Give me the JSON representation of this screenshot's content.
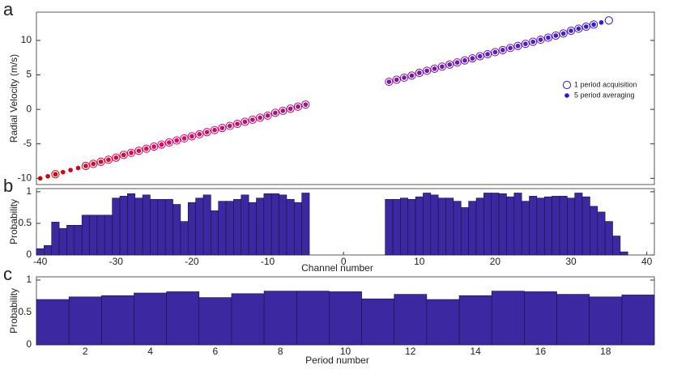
{
  "chart_data": [
    {
      "type": "scatter",
      "panel_label": "a",
      "ylabel": "Radial Velocity (m/s)",
      "xlim": [
        -40.5,
        41
      ],
      "ylim": [
        -10.9,
        14.1
      ],
      "yticks": [
        -10,
        -5,
        0,
        5,
        10
      ],
      "colormap": [
        "#cc0000",
        "#ee0060",
        "#b0107a",
        "#8010a8",
        "#5a18d0",
        "#1818e0"
      ],
      "legend": "right",
      "series": [
        {
          "name": "1 period acquisition",
          "marker": "open",
          "color": "#4a10e0",
          "x": [
            -38,
            -34,
            -33,
            -32,
            -31,
            -30,
            -29,
            -28,
            -27,
            -26,
            -25,
            -24,
            -23,
            -22,
            -21,
            -20,
            -19,
            -18,
            -17,
            -16,
            -15,
            -14,
            -13,
            -12,
            -11,
            -10,
            -9,
            -8,
            -7,
            -6,
            -5,
            6,
            7,
            8,
            9,
            10,
            11,
            12,
            13,
            14,
            15,
            16,
            17,
            18,
            19,
            20,
            21,
            22,
            23,
            24,
            25,
            26,
            27,
            28,
            29,
            30,
            31,
            32,
            33,
            35
          ],
          "values": [
            -9.4,
            -8.2,
            -7.9,
            -7.6,
            -7.3,
            -7.0,
            -6.6,
            -6.3,
            -6.0,
            -5.7,
            -5.4,
            -5.1,
            -4.8,
            -4.5,
            -4.2,
            -3.9,
            -3.6,
            -3.3,
            -3.0,
            -2.7,
            -2.4,
            -2.1,
            -1.8,
            -1.5,
            -1.2,
            -0.9,
            -0.5,
            -0.2,
            0.1,
            0.4,
            0.7,
            4.0,
            4.3,
            4.6,
            4.9,
            5.3,
            5.6,
            5.9,
            6.2,
            6.5,
            6.8,
            7.1,
            7.4,
            7.7,
            8.0,
            8.3,
            8.6,
            8.9,
            9.2,
            9.5,
            9.8,
            10.1,
            10.4,
            10.7,
            11.0,
            11.4,
            11.7,
            12.0,
            12.3,
            12.9
          ]
        },
        {
          "name": "5 period averaging",
          "marker": "filled",
          "color": "#3010e0",
          "x": [
            -40,
            -39,
            -38,
            -37,
            -36,
            -35,
            -34,
            -33,
            -32,
            -31,
            -30,
            -29,
            -28,
            -27,
            -26,
            -25,
            -24,
            -23,
            -22,
            -21,
            -20,
            -19,
            -18,
            -17,
            -16,
            -15,
            -14,
            -13,
            -12,
            -11,
            -10,
            -9,
            -8,
            -7,
            -6,
            -5,
            6,
            7,
            8,
            9,
            10,
            11,
            12,
            13,
            14,
            15,
            16,
            17,
            18,
            19,
            20,
            21,
            22,
            23,
            24,
            25,
            26,
            27,
            28,
            29,
            30,
            31,
            32,
            33,
            34
          ],
          "values": [
            -10.0,
            -9.7,
            -9.4,
            -9.1,
            -8.8,
            -8.5,
            -8.2,
            -7.9,
            -7.6,
            -7.3,
            -7.0,
            -6.6,
            -6.3,
            -6.0,
            -5.7,
            -5.4,
            -5.1,
            -4.8,
            -4.5,
            -4.2,
            -3.9,
            -3.6,
            -3.3,
            -3.0,
            -2.7,
            -2.4,
            -2.1,
            -1.8,
            -1.5,
            -1.2,
            -0.9,
            -0.5,
            -0.2,
            0.1,
            0.4,
            0.7,
            4.0,
            4.3,
            4.6,
            4.9,
            5.3,
            5.6,
            5.9,
            6.2,
            6.5,
            6.8,
            7.1,
            7.4,
            7.7,
            8.0,
            8.3,
            8.6,
            8.9,
            9.2,
            9.5,
            9.8,
            10.1,
            10.4,
            10.7,
            11.0,
            11.4,
            11.7,
            12.0,
            12.3,
            12.6
          ]
        }
      ]
    },
    {
      "type": "bar",
      "panel_label": "b",
      "ylabel": "Probability",
      "xlabel": "Channel number",
      "color": "#3c28a0",
      "xlim": [
        -40.5,
        41
      ],
      "ylim": [
        0,
        1.05
      ],
      "yticks": [
        0,
        0.5,
        1
      ],
      "xticks": [
        -40,
        -30,
        -20,
        -10,
        0,
        10,
        20,
        30,
        40
      ],
      "x": [
        -40,
        -39,
        -38,
        -37,
        -36,
        -35,
        -34,
        -33,
        -32,
        -31,
        -30,
        -29,
        -28,
        -27,
        -26,
        -25,
        -24,
        -23,
        -22,
        -21,
        -20,
        -19,
        -18,
        -17,
        -16,
        -15,
        -14,
        -13,
        -12,
        -11,
        -10,
        -9,
        -8,
        -7,
        -6,
        -5,
        6,
        7,
        8,
        9,
        10,
        11,
        12,
        13,
        14,
        15,
        16,
        17,
        18,
        19,
        20,
        21,
        22,
        23,
        24,
        25,
        26,
        27,
        28,
        29,
        30,
        31,
        32,
        33,
        34,
        35,
        36,
        37
      ],
      "values": [
        0.1,
        0.15,
        0.52,
        0.42,
        0.47,
        0.47,
        0.63,
        0.63,
        0.63,
        0.63,
        0.9,
        0.93,
        0.97,
        0.9,
        0.95,
        0.88,
        0.88,
        0.88,
        0.8,
        0.53,
        0.83,
        0.9,
        0.95,
        0.7,
        0.85,
        0.85,
        0.88,
        0.95,
        0.83,
        0.9,
        0.97,
        0.97,
        0.95,
        0.88,
        0.83,
        0.98,
        0.88,
        0.88,
        0.9,
        0.88,
        0.92,
        0.98,
        0.95,
        0.9,
        0.9,
        0.85,
        0.75,
        0.85,
        0.9,
        0.98,
        0.98,
        0.97,
        0.92,
        0.98,
        0.85,
        0.93,
        0.9,
        0.92,
        0.93,
        0.93,
        0.9,
        0.98,
        0.92,
        0.77,
        0.68,
        0.53,
        0.3,
        0.05
      ]
    },
    {
      "type": "bar",
      "panel_label": "c",
      "ylabel": "Probability",
      "xlabel": "Period number",
      "color": "#3c28a0",
      "xlim": [
        0.5,
        19.5
      ],
      "ylim": [
        0,
        1.05
      ],
      "yticks": [
        0,
        0.5,
        1
      ],
      "xticks": [
        2,
        4,
        6,
        8,
        10,
        12,
        14,
        16,
        18
      ],
      "x": [
        1,
        2,
        3,
        4,
        5,
        6,
        7,
        8,
        9,
        10,
        11,
        12,
        13,
        14,
        15,
        16,
        17,
        18,
        19
      ],
      "values": [
        0.7,
        0.74,
        0.76,
        0.8,
        0.82,
        0.73,
        0.79,
        0.83,
        0.83,
        0.82,
        0.71,
        0.78,
        0.7,
        0.76,
        0.83,
        0.82,
        0.78,
        0.74,
        0.77
      ]
    }
  ]
}
